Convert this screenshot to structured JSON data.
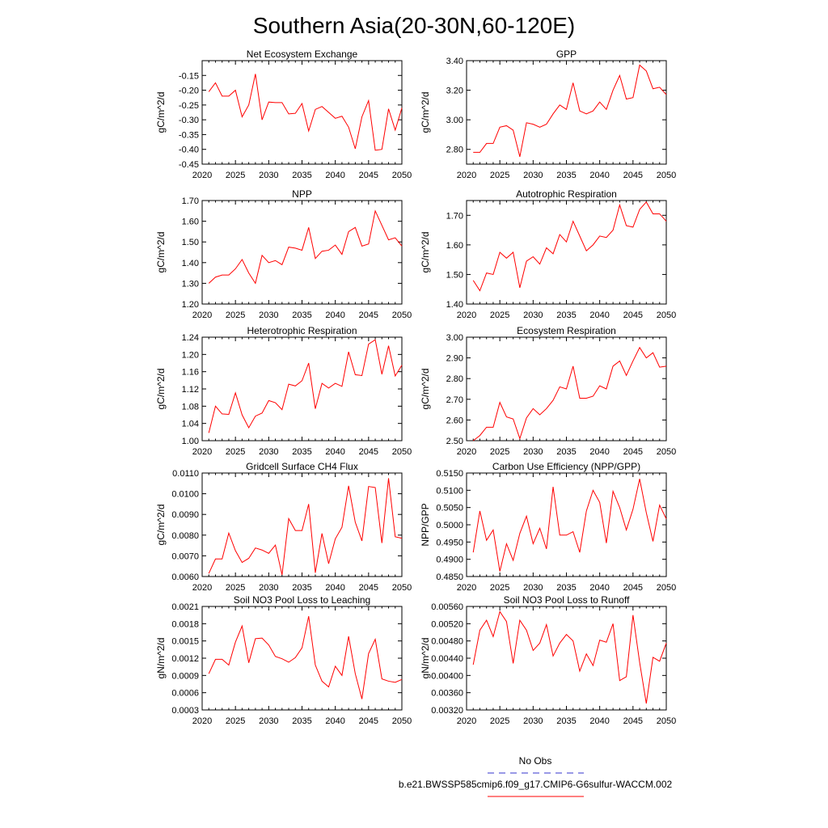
{
  "figure": {
    "title": "Southern Asia(20-30N,60-120E)",
    "colors": {
      "model_line": "#ff0000",
      "obs_line": "#3333cc"
    }
  },
  "legend": {
    "obs_label": "No Obs",
    "model_label": "b.e21.BWSSP585cmip6.f09_g17.CMIP6-G6sulfur-WACCM.002"
  },
  "chart_data": [
    {
      "type": "line",
      "title": "Net Ecosystem Exchange",
      "ylabel": "gC/m^2/d",
      "xlabel": "",
      "x": [
        2021,
        2022,
        2023,
        2024,
        2025,
        2026,
        2027,
        2028,
        2029,
        2030,
        2031,
        2032,
        2033,
        2034,
        2035,
        2036,
        2037,
        2038,
        2039,
        2040,
        2041,
        2042,
        2043,
        2044,
        2045,
        2046,
        2047,
        2048,
        2049,
        2050
      ],
      "xlim": [
        2020,
        2050
      ],
      "xticks": [
        "2020",
        "2025",
        "2030",
        "2035",
        "2040",
        "2045",
        "2050"
      ],
      "ylim": [
        -0.45,
        -0.1
      ],
      "yticks": [
        "-0.15",
        "-0.20",
        "-0.25",
        "-0.30",
        "-0.35",
        "-0.40",
        "-0.45"
      ],
      "series": [
        {
          "values": [
            -0.205,
            -0.175,
            -0.22,
            -0.22,
            -0.2,
            -0.29,
            -0.25,
            -0.145,
            -0.3,
            -0.24,
            -0.242,
            -0.242,
            -0.28,
            -0.278,
            -0.245,
            -0.338,
            -0.265,
            -0.255,
            -0.275,
            -0.295,
            -0.288,
            -0.325,
            -0.398,
            -0.29,
            -0.235,
            -0.403,
            -0.4,
            -0.263,
            -0.335,
            -0.26
          ]
        }
      ]
    },
    {
      "type": "line",
      "title": "GPP",
      "ylabel": "gC/m^2/d",
      "xlabel": "",
      "x": [
        2021,
        2022,
        2023,
        2024,
        2025,
        2026,
        2027,
        2028,
        2029,
        2030,
        2031,
        2032,
        2033,
        2034,
        2035,
        2036,
        2037,
        2038,
        2039,
        2040,
        2041,
        2042,
        2043,
        2044,
        2045,
        2046,
        2047,
        2048,
        2049,
        2050
      ],
      "xlim": [
        2020,
        2050
      ],
      "xticks": [
        "2020",
        "2025",
        "2030",
        "2035",
        "2040",
        "2045",
        "2050"
      ],
      "ylim": [
        2.7,
        3.4
      ],
      "yticks": [
        "2.80",
        "3.00",
        "3.20",
        "3.40"
      ],
      "series": [
        {
          "values": [
            2.78,
            2.78,
            2.84,
            2.84,
            2.95,
            2.96,
            2.93,
            2.75,
            2.98,
            2.97,
            2.95,
            2.97,
            3.04,
            3.1,
            3.07,
            3.25,
            3.06,
            3.04,
            3.06,
            3.12,
            3.07,
            3.2,
            3.3,
            3.14,
            3.15,
            3.37,
            3.33,
            3.21,
            3.22,
            3.17
          ]
        }
      ]
    },
    {
      "type": "line",
      "title": "NPP",
      "ylabel": "gC/m^2/d",
      "xlabel": "",
      "x": [
        2021,
        2022,
        2023,
        2024,
        2025,
        2026,
        2027,
        2028,
        2029,
        2030,
        2031,
        2032,
        2033,
        2034,
        2035,
        2036,
        2037,
        2038,
        2039,
        2040,
        2041,
        2042,
        2043,
        2044,
        2045,
        2046,
        2047,
        2048,
        2049,
        2050
      ],
      "xlim": [
        2020,
        2050
      ],
      "xticks": [
        "2020",
        "2025",
        "2030",
        "2035",
        "2040",
        "2045",
        "2050"
      ],
      "ylim": [
        1.2,
        1.7
      ],
      "yticks": [
        "1.20",
        "1.30",
        "1.40",
        "1.50",
        "1.60",
        "1.70"
      ],
      "series": [
        {
          "values": [
            1.3,
            1.33,
            1.34,
            1.34,
            1.37,
            1.415,
            1.35,
            1.3,
            1.435,
            1.4,
            1.41,
            1.39,
            1.475,
            1.47,
            1.46,
            1.57,
            1.42,
            1.455,
            1.46,
            1.485,
            1.44,
            1.55,
            1.57,
            1.48,
            1.49,
            1.65,
            1.58,
            1.51,
            1.52,
            1.48
          ]
        }
      ]
    },
    {
      "type": "line",
      "title": "Autotrophic Respiration",
      "ylabel": "gC/m^2/d",
      "xlabel": "",
      "x": [
        2021,
        2022,
        2023,
        2024,
        2025,
        2026,
        2027,
        2028,
        2029,
        2030,
        2031,
        2032,
        2033,
        2034,
        2035,
        2036,
        2037,
        2038,
        2039,
        2040,
        2041,
        2042,
        2043,
        2044,
        2045,
        2046,
        2047,
        2048,
        2049,
        2050
      ],
      "xlim": [
        2020,
        2050
      ],
      "xticks": [
        "2020",
        "2025",
        "2030",
        "2035",
        "2040",
        "2045",
        "2050"
      ],
      "ylim": [
        1.4,
        1.75
      ],
      "yticks": [
        "1.40",
        "1.50",
        "1.60",
        "1.70"
      ],
      "series": [
        {
          "values": [
            1.48,
            1.445,
            1.505,
            1.5,
            1.575,
            1.555,
            1.575,
            1.455,
            1.545,
            1.56,
            1.535,
            1.59,
            1.57,
            1.635,
            1.61,
            1.68,
            1.63,
            1.58,
            1.6,
            1.63,
            1.625,
            1.65,
            1.735,
            1.665,
            1.66,
            1.72,
            1.745,
            1.705,
            1.705,
            1.68
          ]
        }
      ]
    },
    {
      "type": "line",
      "title": "Heterotrophic Respiration",
      "ylabel": "gC/m^2/d",
      "xlabel": "",
      "x": [
        2021,
        2022,
        2023,
        2024,
        2025,
        2026,
        2027,
        2028,
        2029,
        2030,
        2031,
        2032,
        2033,
        2034,
        2035,
        2036,
        2037,
        2038,
        2039,
        2040,
        2041,
        2042,
        2043,
        2044,
        2045,
        2046,
        2047,
        2048,
        2049,
        2050
      ],
      "xlim": [
        2020,
        2050
      ],
      "xticks": [
        "2020",
        "2025",
        "2030",
        "2035",
        "2040",
        "2045",
        "2050"
      ],
      "ylim": [
        1.0,
        1.24
      ],
      "yticks": [
        "1.00",
        "1.04",
        "1.08",
        "1.12",
        "1.16",
        "1.20",
        "1.24"
      ],
      "series": [
        {
          "values": [
            1.018,
            1.08,
            1.062,
            1.061,
            1.111,
            1.06,
            1.03,
            1.057,
            1.064,
            1.093,
            1.088,
            1.072,
            1.131,
            1.127,
            1.139,
            1.18,
            1.074,
            1.133,
            1.122,
            1.133,
            1.126,
            1.206,
            1.153,
            1.151,
            1.224,
            1.234,
            1.154,
            1.22,
            1.15,
            1.175
          ]
        }
      ]
    },
    {
      "type": "line",
      "title": "Ecosystem Respiration",
      "ylabel": "gC/m^2/d",
      "xlabel": "",
      "x": [
        2021,
        2022,
        2023,
        2024,
        2025,
        2026,
        2027,
        2028,
        2029,
        2030,
        2031,
        2032,
        2033,
        2034,
        2035,
        2036,
        2037,
        2038,
        2039,
        2040,
        2041,
        2042,
        2043,
        2044,
        2045,
        2046,
        2047,
        2048,
        2049,
        2050
      ],
      "xlim": [
        2020,
        2050
      ],
      "xticks": [
        "2020",
        "2025",
        "2030",
        "2035",
        "2040",
        "2045",
        "2050"
      ],
      "ylim": [
        2.5,
        3.0
      ],
      "yticks": [
        "2.50",
        "2.60",
        "2.70",
        "2.80",
        "2.90",
        "3.00"
      ],
      "series": [
        {
          "values": [
            2.5,
            2.525,
            2.565,
            2.565,
            2.685,
            2.615,
            2.605,
            2.51,
            2.61,
            2.655,
            2.625,
            2.655,
            2.695,
            2.76,
            2.75,
            2.86,
            2.705,
            2.705,
            2.715,
            2.765,
            2.75,
            2.86,
            2.885,
            2.815,
            2.885,
            2.95,
            2.9,
            2.925,
            2.855,
            2.86
          ]
        }
      ]
    },
    {
      "type": "line",
      "title": "Gridcell Surface CH4 Flux",
      "ylabel": "gC/m^2/d",
      "xlabel": "",
      "x": [
        2021,
        2022,
        2023,
        2024,
        2025,
        2026,
        2027,
        2028,
        2029,
        2030,
        2031,
        2032,
        2033,
        2034,
        2035,
        2036,
        2037,
        2038,
        2039,
        2040,
        2041,
        2042,
        2043,
        2044,
        2045,
        2046,
        2047,
        2048,
        2049,
        2050
      ],
      "xlim": [
        2020,
        2050
      ],
      "xticks": [
        "2020",
        "2025",
        "2030",
        "2035",
        "2040",
        "2045",
        "2050"
      ],
      "ylim": [
        0.006,
        0.011
      ],
      "yticks": [
        "0.0060",
        "0.0070",
        "0.0080",
        "0.0090",
        "0.0100",
        "0.0110"
      ],
      "series": [
        {
          "values": [
            0.00615,
            0.00685,
            0.00685,
            0.0081,
            0.00725,
            0.00668,
            0.00688,
            0.00738,
            0.00728,
            0.00712,
            0.00752,
            0.00608,
            0.0088,
            0.00822,
            0.00822,
            0.0095,
            0.00618,
            0.00808,
            0.00662,
            0.00782,
            0.00838,
            0.01038,
            0.00862,
            0.00772,
            0.01035,
            0.0103,
            0.00762,
            0.01075,
            0.00792,
            0.00785
          ]
        }
      ]
    },
    {
      "type": "line",
      "title": "Carbon Use Efficiency (NPP/GPP)",
      "ylabel": "NPP/GPP",
      "xlabel": "",
      "x": [
        2021,
        2022,
        2023,
        2024,
        2025,
        2026,
        2027,
        2028,
        2029,
        2030,
        2031,
        2032,
        2033,
        2034,
        2035,
        2036,
        2037,
        2038,
        2039,
        2040,
        2041,
        2042,
        2043,
        2044,
        2045,
        2046,
        2047,
        2048,
        2049,
        2050
      ],
      "xlim": [
        2020,
        2050
      ],
      "xticks": [
        "2020",
        "2025",
        "2030",
        "2035",
        "2040",
        "2045",
        "2050"
      ],
      "ylim": [
        0.485,
        0.515
      ],
      "yticks": [
        "0.4850",
        "0.4900",
        "0.4950",
        "0.5000",
        "0.5050",
        "0.5100",
        "0.5150"
      ],
      "series": [
        {
          "values": [
            0.492,
            0.504,
            0.4955,
            0.4985,
            0.4865,
            0.4945,
            0.4897,
            0.4975,
            0.5025,
            0.4945,
            0.499,
            0.493,
            0.511,
            0.497,
            0.497,
            0.498,
            0.492,
            0.504,
            0.51,
            0.5065,
            0.4947,
            0.5097,
            0.505,
            0.4985,
            0.5045,
            0.5133,
            0.5035,
            0.4952,
            0.5057,
            0.5017
          ]
        }
      ]
    },
    {
      "type": "line",
      "title": "Soil NO3 Pool Loss to Leaching",
      "ylabel": "gN/m^2/d",
      "xlabel": "",
      "x": [
        2021,
        2022,
        2023,
        2024,
        2025,
        2026,
        2027,
        2028,
        2029,
        2030,
        2031,
        2032,
        2033,
        2034,
        2035,
        2036,
        2037,
        2038,
        2039,
        2040,
        2041,
        2042,
        2043,
        2044,
        2045,
        2046,
        2047,
        2048,
        2049,
        2050
      ],
      "xlim": [
        2020,
        2050
      ],
      "xticks": [
        "2020",
        "2025",
        "2030",
        "2035",
        "2040",
        "2045",
        "2050"
      ],
      "ylim": [
        0.0003,
        0.0021
      ],
      "yticks": [
        "0.0003",
        "0.0006",
        "0.0009",
        "0.0012",
        "0.0015",
        "0.0018",
        "0.0021"
      ],
      "series": [
        {
          "values": [
            0.00093,
            0.00118,
            0.00118,
            0.00108,
            0.00148,
            0.00176,
            0.00112,
            0.00154,
            0.00155,
            0.00143,
            0.00123,
            0.00119,
            0.00113,
            0.00121,
            0.00138,
            0.00193,
            0.00108,
            0.0008,
            0.0007,
            0.00106,
            0.0009,
            0.00158,
            0.00093,
            0.00049,
            0.00128,
            0.00153,
            0.00084,
            0.0008,
            0.00078,
            0.00083
          ]
        }
      ]
    },
    {
      "type": "line",
      "title": "Soil NO3 Pool Loss to Runoff",
      "ylabel": "gN/m^2/d",
      "xlabel": "",
      "x": [
        2021,
        2022,
        2023,
        2024,
        2025,
        2026,
        2027,
        2028,
        2029,
        2030,
        2031,
        2032,
        2033,
        2034,
        2035,
        2036,
        2037,
        2038,
        2039,
        2040,
        2041,
        2042,
        2043,
        2044,
        2045,
        2046,
        2047,
        2048,
        2049,
        2050
      ],
      "xlim": [
        2020,
        2050
      ],
      "xticks": [
        "2020",
        "2025",
        "2030",
        "2035",
        "2040",
        "2045",
        "2050"
      ],
      "ylim": [
        0.0032,
        0.0056
      ],
      "yticks": [
        "0.00320",
        "0.00360",
        "0.00400",
        "0.00440",
        "0.00480",
        "0.00520",
        "0.00560"
      ],
      "series": [
        {
          "values": [
            0.00425,
            0.00505,
            0.00528,
            0.0049,
            0.00548,
            0.00525,
            0.00428,
            0.00528,
            0.00505,
            0.00458,
            0.00475,
            0.00518,
            0.00445,
            0.00475,
            0.00495,
            0.0048,
            0.0041,
            0.0045,
            0.00423,
            0.00482,
            0.00477,
            0.0052,
            0.00388,
            0.00397,
            0.0054,
            0.0043,
            0.00335,
            0.00442,
            0.00433,
            0.00475
          ]
        }
      ]
    }
  ]
}
